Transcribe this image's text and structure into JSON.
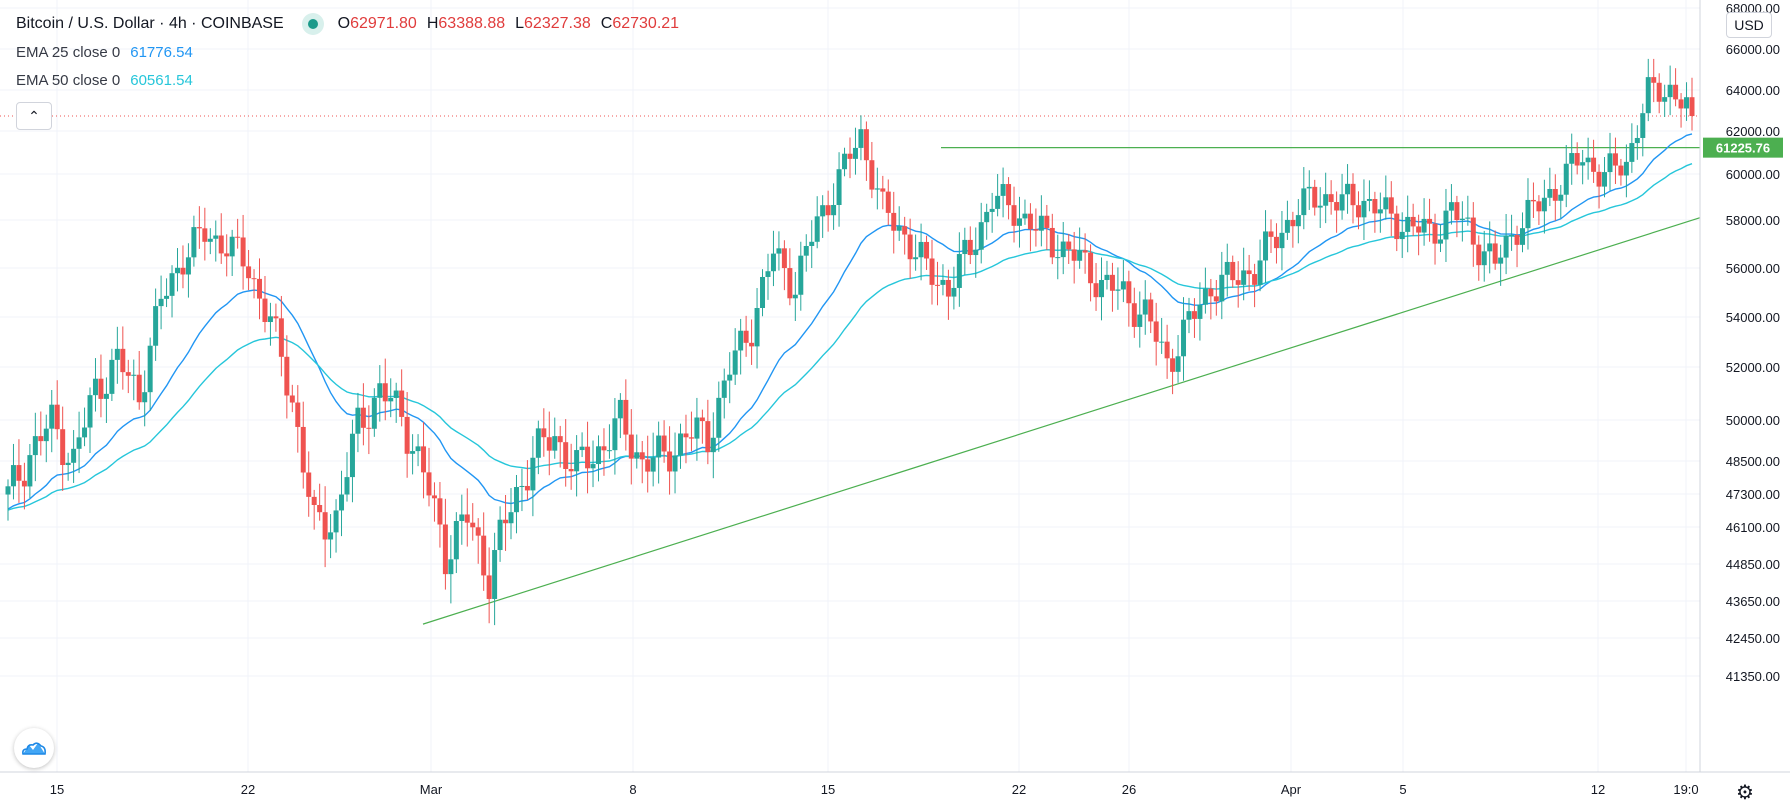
{
  "header": {
    "symbol": "Bitcoin / U.S. Dollar",
    "interval": "4h",
    "exchange": "COINBASE",
    "ohlc": {
      "o_label": "O",
      "o": "62971.80",
      "h_label": "H",
      "h": "63388.88",
      "l_label": "L",
      "l": "62327.38",
      "c_label": "C",
      "c": "62730.21"
    }
  },
  "indicators": [
    {
      "label": "EMA 25 close 0",
      "value": "61776.54",
      "color": "#2196f3"
    },
    {
      "label": "EMA 50 close 0",
      "value": "60561.54",
      "color": "#26c6da"
    }
  ],
  "currency_button": "USD",
  "price_axis": {
    "ticks": [
      "68000.00",
      "66000.00",
      "64000.00",
      "62000.00",
      "60000.00",
      "58000.00",
      "56000.00",
      "54000.00",
      "52000.00",
      "50000.00",
      "48500.00",
      "47300.00",
      "46100.00",
      "44850.00",
      "43650.00",
      "42450.00",
      "41350.00"
    ],
    "horizontal_line_label": "61225.76"
  },
  "time_axis": {
    "ticks": [
      "15",
      "22",
      "Mar",
      "8",
      "15",
      "22",
      "26",
      "Apr",
      "5",
      "12",
      "19:0"
    ]
  },
  "colors": {
    "up": "#26a69a",
    "down": "#ef5350",
    "line": "#4caf50",
    "ema25": "#2196f3",
    "ema50": "#26c6da"
  },
  "icons": {
    "collapse": "chevron-up-icon",
    "logo": "tradingview-logo-icon",
    "settings": "gear-icon"
  },
  "chart_data": {
    "type": "candlestick",
    "x_range": [
      "Feb 13",
      "Apr 16"
    ],
    "y_range": [
      41350,
      68000
    ],
    "closes_approx": [
      47200,
      48800,
      49900,
      48500,
      51200,
      52200,
      51000,
      54600,
      56500,
      57400,
      57000,
      56000,
      53800,
      50800,
      46100,
      46500,
      49800,
      51100,
      50200,
      48000,
      45300,
      46400,
      44500,
      46800,
      48700,
      49400,
      48200,
      48900,
      49900,
      48500,
      48600,
      49500,
      49400,
      51900,
      53700,
      56600,
      55300,
      57900,
      59800,
      61800,
      58400,
      57400,
      55900,
      55200,
      56800,
      58900,
      58500,
      57600,
      57000,
      56300,
      55400,
      54900,
      54100,
      52200,
      53700,
      55300,
      55500,
      56000,
      57300,
      58500,
      59100,
      58700,
      58900,
      58200,
      57800,
      57400,
      58400,
      57300,
      56100,
      57800,
      58600,
      59700,
      60800,
      59900,
      60600,
      63800,
      64100,
      62730
    ]
  }
}
